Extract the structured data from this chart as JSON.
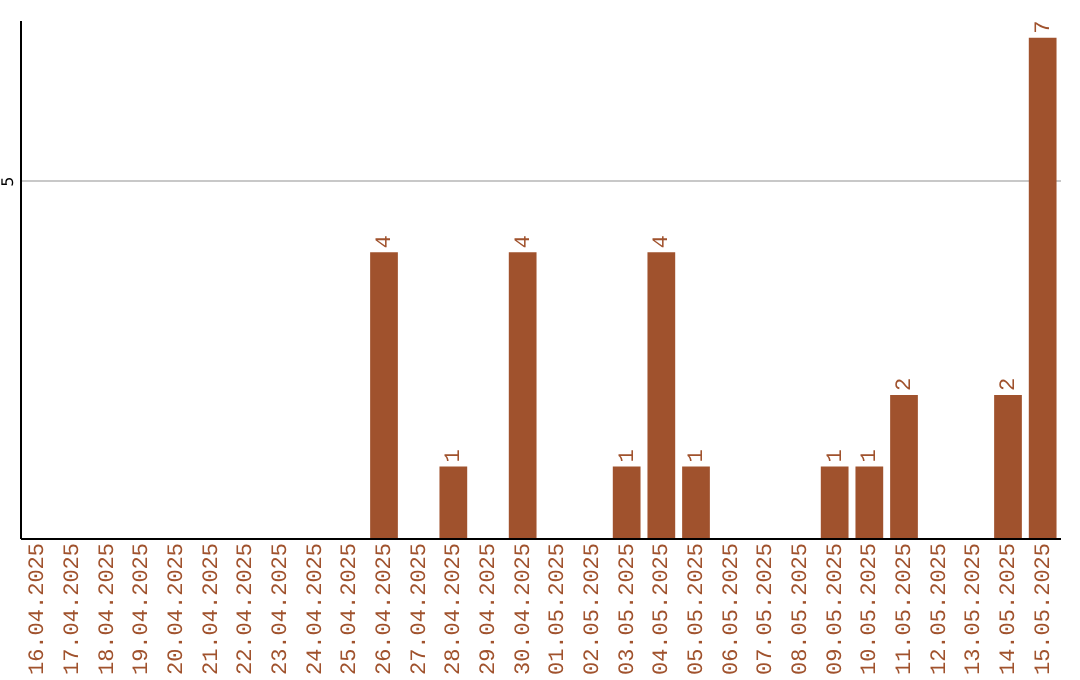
{
  "chart_data": {
    "type": "bar",
    "categories": [
      "16.04.2025",
      "17.04.2025",
      "18.04.2025",
      "19.04.2025",
      "20.04.2025",
      "21.04.2025",
      "22.04.2025",
      "23.04.2025",
      "24.04.2025",
      "25.04.2025",
      "26.04.2025",
      "27.04.2025",
      "28.04.2025",
      "29.04.2025",
      "30.04.2025",
      "01.05.2025",
      "02.05.2025",
      "03.05.2025",
      "04.05.2025",
      "05.05.2025",
      "06.05.2025",
      "07.05.2025",
      "08.05.2025",
      "09.05.2025",
      "10.05.2025",
      "11.05.2025",
      "12.05.2025",
      "13.05.2025",
      "14.05.2025",
      "15.05.2025"
    ],
    "values": [
      0,
      0,
      0,
      0,
      0,
      0,
      0,
      0,
      0,
      0,
      4,
      0,
      1,
      0,
      4,
      0,
      0,
      1,
      4,
      1,
      0,
      0,
      0,
      1,
      1,
      2,
      0,
      0,
      2,
      7
    ],
    "value_labels": [
      null,
      null,
      null,
      null,
      null,
      null,
      null,
      null,
      null,
      null,
      "4",
      null,
      "1",
      null,
      "4",
      null,
      null,
      "1",
      "4",
      "1",
      null,
      null,
      null,
      "1",
      "1",
      "2",
      null,
      null,
      "2",
      "7"
    ],
    "color": "#a0522d",
    "ylim": [
      0,
      7.25
    ],
    "yticks": [
      5
    ],
    "grid": "y"
  }
}
